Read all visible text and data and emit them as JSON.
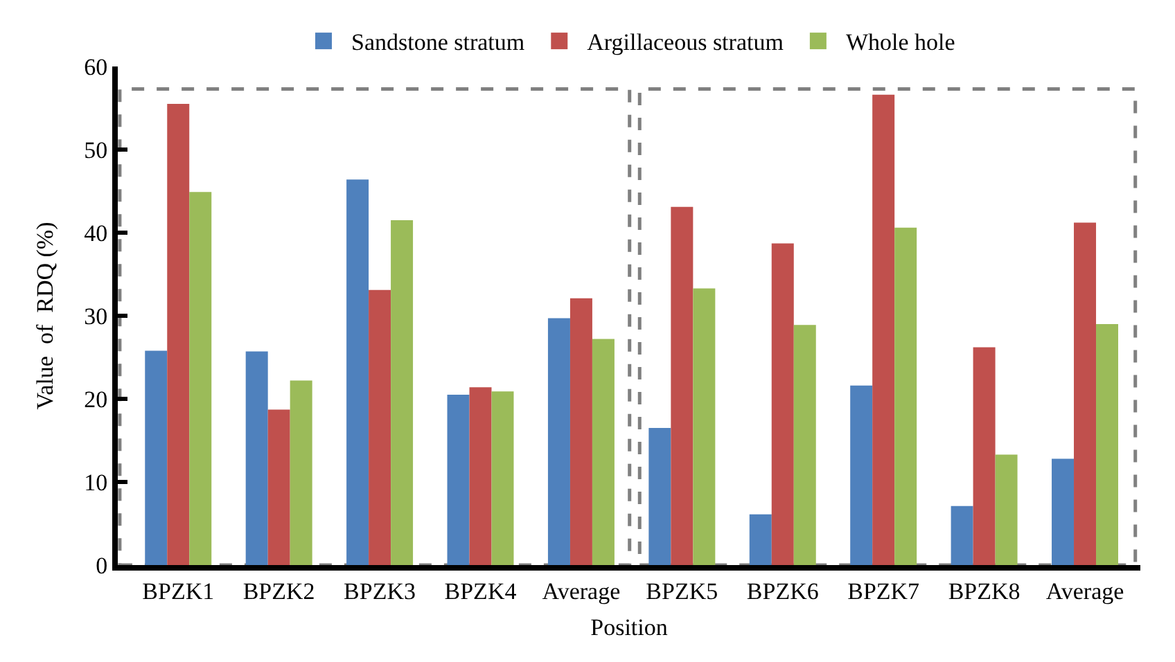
{
  "chart_data": {
    "type": "bar",
    "xlabel": "Position",
    "ylabel": "Value  of  RDQ (%)",
    "categories": [
      "BPZK1",
      "BPZK2",
      "BPZK3",
      "BPZK4",
      "Average",
      "BPZK5",
      "BPZK6",
      "BPZK7",
      "BPZK8",
      "Average"
    ],
    "series": [
      {
        "name": "Sandstone stratum",
        "color": "#4f81bd",
        "values": [
          25.8,
          25.7,
          46.4,
          20.5,
          29.7,
          16.5,
          6.1,
          21.6,
          7.1,
          12.8
        ]
      },
      {
        "name": "Argillaceous stratum",
        "color": "#c0504d",
        "values": [
          55.5,
          18.7,
          33.1,
          21.4,
          32.1,
          43.1,
          38.7,
          56.6,
          26.2,
          41.2
        ]
      },
      {
        "name": "Whole hole",
        "color": "#9bbb59",
        "values": [
          44.9,
          22.2,
          41.5,
          20.9,
          27.2,
          33.3,
          28.9,
          40.6,
          13.3,
          29.0
        ]
      }
    ],
    "ylim": [
      0,
      60
    ],
    "yticks": [
      0,
      10,
      20,
      30,
      40,
      50,
      60
    ],
    "grid": false,
    "legend": "top"
  }
}
